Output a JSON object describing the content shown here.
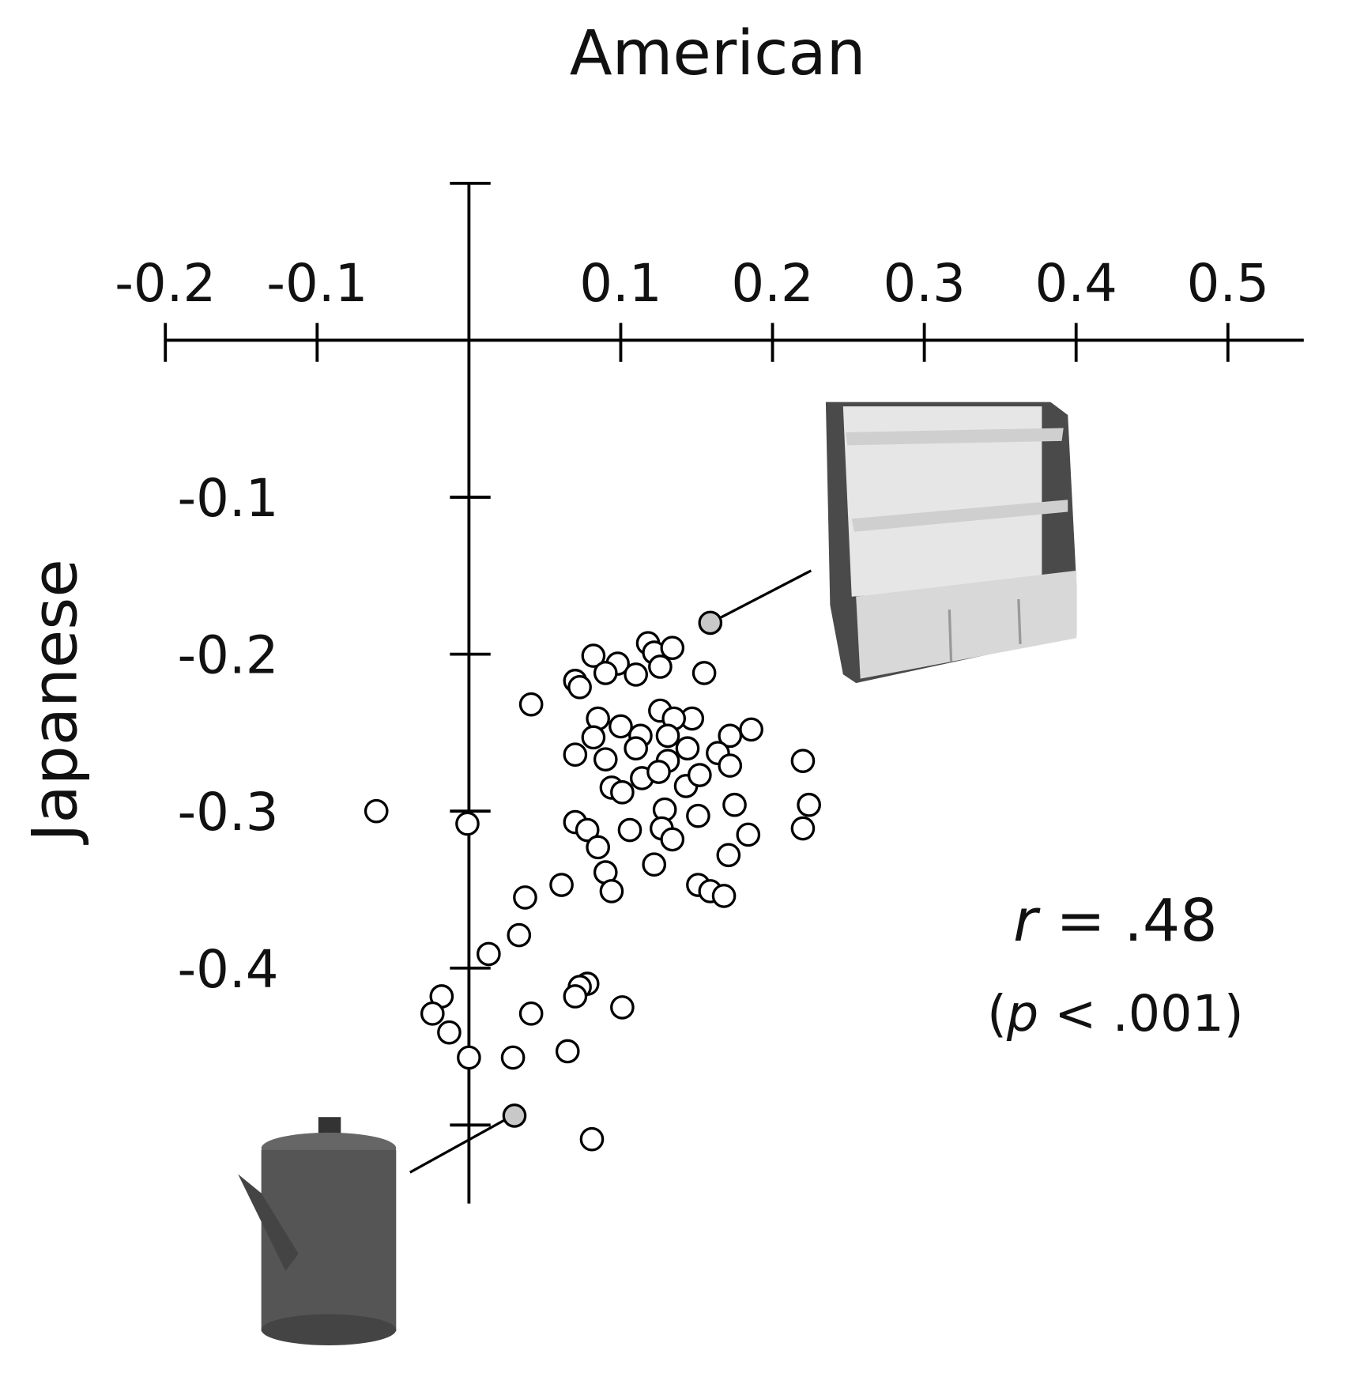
{
  "chart_data": {
    "type": "scatter",
    "xlabel": "American",
    "ylabel": "Japanese",
    "xlim": [
      -0.2,
      0.55
    ],
    "ylim": [
      -0.55,
      0.1
    ],
    "xticks": [
      -0.2,
      -0.1,
      0.1,
      0.2,
      0.3,
      0.4,
      0.5
    ],
    "yticks": [
      {
        "value": 0.1,
        "label": null
      },
      -0.1,
      -0.2,
      -0.3,
      -0.4,
      {
        "value": -0.5,
        "label": null
      }
    ],
    "series": [
      {
        "color": "#ffffff",
        "x": [
          -0.061,
          -0.001,
          0.041,
          0.082,
          0.098,
          0.09,
          0.07,
          0.073,
          0.11,
          0.118,
          0.122,
          0.134,
          0.126,
          0.155,
          0.126,
          0.147,
          0.135,
          0.085,
          0.1,
          0.082,
          0.113,
          0.131,
          0.172,
          0.186,
          0.07,
          0.09,
          0.11,
          0.131,
          0.144,
          0.164,
          0.172,
          0.22,
          0.114,
          0.125,
          0.143,
          0.152,
          0.094,
          0.101,
          0.129,
          0.151,
          0.175,
          0.224,
          0.22,
          0.07,
          0.078,
          0.106,
          0.127,
          0.134,
          0.184,
          0.085,
          0.171,
          0.122,
          0.09,
          0.094,
          0.061,
          0.151,
          0.159,
          0.168,
          0.037,
          0.033,
          0.013,
          0.078,
          0.073,
          0.07,
          0.101,
          0.041,
          -0.018,
          -0.024,
          -0.013,
          0.0,
          0.029,
          0.065,
          0.081
        ],
        "values": [
          -0.3,
          -0.308,
          -0.232,
          -0.201,
          -0.206,
          -0.212,
          -0.217,
          -0.221,
          -0.213,
          -0.193,
          -0.199,
          -0.196,
          -0.208,
          -0.212,
          -0.236,
          -0.241,
          -0.241,
          -0.241,
          -0.246,
          -0.253,
          -0.252,
          -0.252,
          -0.252,
          -0.248,
          -0.264,
          -0.267,
          -0.26,
          -0.268,
          -0.26,
          -0.263,
          -0.271,
          -0.268,
          -0.279,
          -0.275,
          -0.284,
          -0.277,
          -0.285,
          -0.288,
          -0.299,
          -0.303,
          -0.296,
          -0.296,
          -0.311,
          -0.307,
          -0.312,
          -0.312,
          -0.311,
          -0.318,
          -0.315,
          -0.323,
          -0.328,
          -0.334,
          -0.339,
          -0.351,
          -0.347,
          -0.347,
          -0.351,
          -0.354,
          -0.355,
          -0.379,
          -0.391,
          -0.41,
          -0.412,
          -0.418,
          -0.425,
          -0.429,
          -0.418,
          -0.429,
          -0.441,
          -0.457,
          -0.457,
          -0.453,
          -0.509
        ]
      },
      {
        "color": "#c8c8c8",
        "x": [
          0.159,
          0.03
        ],
        "values": [
          -0.18,
          -0.494
        ]
      }
    ],
    "annotations": [
      [
        "r",
        " = .48"
      ],
      [
        "(",
        "p",
        " < .001)"
      ]
    ]
  }
}
